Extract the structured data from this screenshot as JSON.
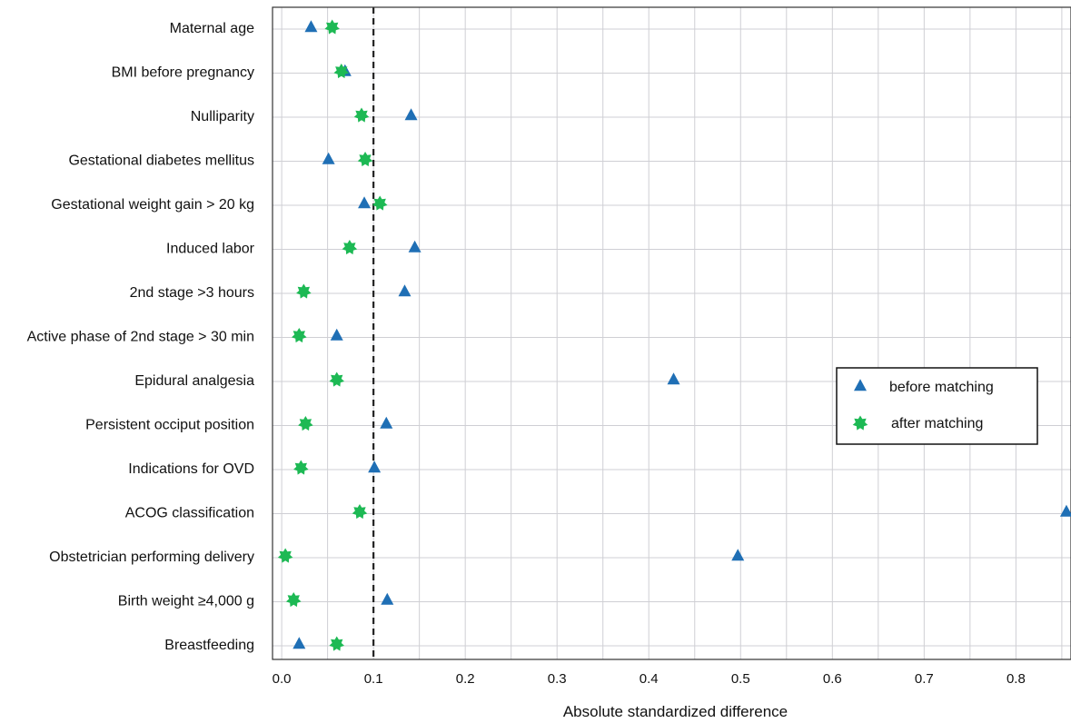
{
  "chart_data": {
    "type": "scatter",
    "orientation": "horizontal",
    "title": "",
    "xlabel": "Absolute standardized difference",
    "ylabel": "",
    "xlim": [
      -0.01,
      0.86
    ],
    "x_ticks": [
      0.0,
      0.1,
      0.2,
      0.3,
      0.4,
      0.5,
      0.6,
      0.7,
      0.8
    ],
    "x_tick_labels": [
      "0.0",
      "0.1",
      "0.2",
      "0.3",
      "0.4",
      "0.5",
      "0.6",
      "0.7",
      "0.8"
    ],
    "minor_grid_step": 0.05,
    "grid": true,
    "reference_line": {
      "x": 0.1,
      "style": "dashed"
    },
    "categories": [
      "Maternal age",
      "BMI before pregnancy",
      "Nulliparity",
      "Gestational diabetes mellitus",
      "Gestational weight gain > 20 kg",
      "Induced labor",
      "2nd stage >3 hours",
      "Active phase of 2nd stage > 30 min",
      "Epidural analgesia",
      "Persistent occiput position",
      "Indications for OVD",
      "ACOG classification",
      "Obstetrician performing delivery",
      "Birth weight ≥4,000 g",
      "Breastfeeding"
    ],
    "series": [
      {
        "name": "before matching",
        "marker": "triangle",
        "color": "#1f6fb5",
        "values": [
          0.032,
          0.069,
          0.141,
          0.051,
          0.09,
          0.145,
          0.134,
          0.06,
          0.427,
          0.114,
          0.101,
          0.855,
          0.497,
          0.115,
          0.019
        ]
      },
      {
        "name": "after matching",
        "marker": "star",
        "color": "#1db954",
        "values": [
          0.055,
          0.065,
          0.087,
          0.091,
          0.107,
          0.074,
          0.024,
          0.019,
          0.06,
          0.026,
          0.021,
          0.085,
          0.004,
          0.013,
          0.06
        ]
      }
    ],
    "legend_position": "right"
  }
}
